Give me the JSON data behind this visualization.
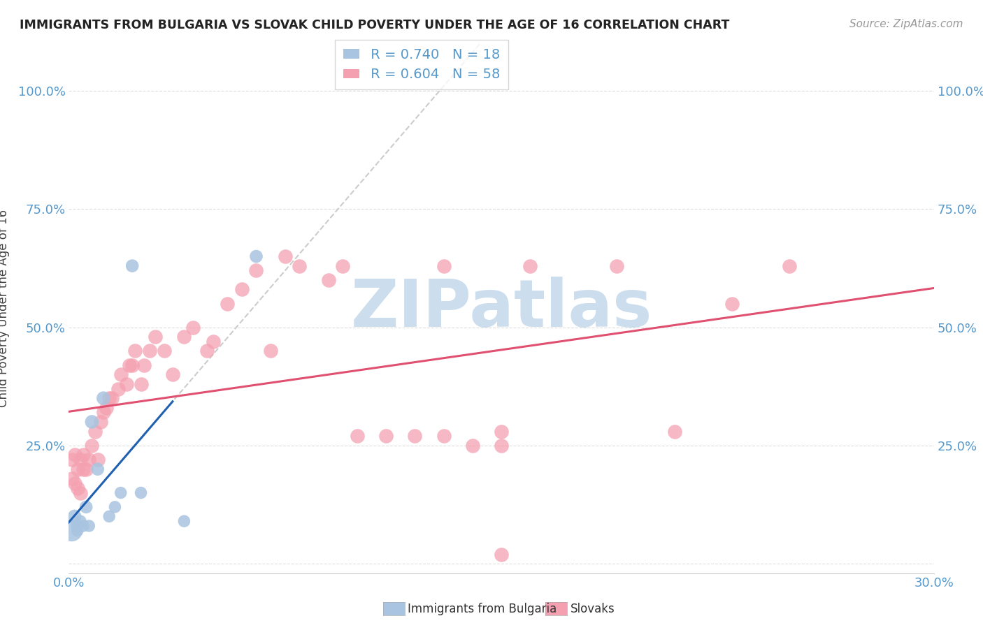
{
  "title": "IMMIGRANTS FROM BULGARIA VS SLOVAK CHILD POVERTY UNDER THE AGE OF 16 CORRELATION CHART",
  "source": "Source: ZipAtlas.com",
  "ylabel": "Child Poverty Under the Age of 16",
  "xlim": [
    0.0,
    0.3
  ],
  "ylim": [
    -0.02,
    1.1
  ],
  "xticks": [
    0.0,
    0.05,
    0.1,
    0.15,
    0.2,
    0.25,
    0.3
  ],
  "xticklabels": [
    "0.0%",
    "",
    "",
    "",
    "",
    "",
    "30.0%"
  ],
  "yticks": [
    0.0,
    0.25,
    0.5,
    0.75,
    1.0
  ],
  "yticklabels": [
    "",
    "25.0%",
    "50.0%",
    "75.0%",
    "100.0%"
  ],
  "right_yticklabels": [
    "",
    "25.0%",
    "50.0%",
    "75.0%",
    "100.0%"
  ],
  "bulgaria_R": 0.74,
  "bulgaria_N": 18,
  "slovak_R": 0.604,
  "slovak_N": 58,
  "bulgaria_color": "#a8c4e0",
  "bulgaria_line_color": "#2060b0",
  "slovak_color": "#f4a0b0",
  "slovak_line_color": "#e05070",
  "bulgaria_scatter_x": [
    0.001,
    0.002,
    0.003,
    0.003,
    0.004,
    0.005,
    0.006,
    0.007,
    0.008,
    0.01,
    0.012,
    0.014,
    0.016,
    0.018,
    0.022,
    0.025,
    0.04,
    0.065
  ],
  "bulgaria_scatter_y": [
    0.07,
    0.1,
    0.08,
    0.07,
    0.09,
    0.08,
    0.12,
    0.08,
    0.3,
    0.2,
    0.35,
    0.1,
    0.12,
    0.15,
    0.63,
    0.15,
    0.09,
    0.65
  ],
  "bulgaria_scatter_sizes": [
    500,
    200,
    180,
    160,
    160,
    160,
    180,
    160,
    200,
    180,
    200,
    160,
    160,
    160,
    180,
    160,
    160,
    180
  ],
  "slovak_scatter_x": [
    0.001,
    0.001,
    0.002,
    0.002,
    0.003,
    0.003,
    0.004,
    0.004,
    0.005,
    0.005,
    0.006,
    0.007,
    0.008,
    0.009,
    0.01,
    0.011,
    0.012,
    0.013,
    0.014,
    0.015,
    0.017,
    0.018,
    0.02,
    0.021,
    0.022,
    0.023,
    0.025,
    0.026,
    0.028,
    0.03,
    0.033,
    0.036,
    0.04,
    0.043,
    0.048,
    0.05,
    0.055,
    0.06,
    0.065,
    0.07,
    0.075,
    0.08,
    0.09,
    0.1,
    0.11,
    0.13,
    0.15,
    0.16,
    0.19,
    0.21,
    0.23,
    0.25,
    0.15,
    0.12,
    0.14,
    0.095,
    0.13,
    0.15
  ],
  "slovak_scatter_y": [
    0.18,
    0.22,
    0.17,
    0.23,
    0.16,
    0.2,
    0.15,
    0.22,
    0.2,
    0.23,
    0.2,
    0.22,
    0.25,
    0.28,
    0.22,
    0.3,
    0.32,
    0.33,
    0.35,
    0.35,
    0.37,
    0.4,
    0.38,
    0.42,
    0.42,
    0.45,
    0.38,
    0.42,
    0.45,
    0.48,
    0.45,
    0.4,
    0.48,
    0.5,
    0.45,
    0.47,
    0.55,
    0.58,
    0.62,
    0.45,
    0.65,
    0.63,
    0.6,
    0.27,
    0.27,
    0.63,
    0.28,
    0.63,
    0.63,
    0.28,
    0.55,
    0.63,
    0.25,
    0.27,
    0.25,
    0.63,
    0.27,
    0.02
  ],
  "watermark_text": "ZIPatlas",
  "watermark_color": "#ccdded"
}
